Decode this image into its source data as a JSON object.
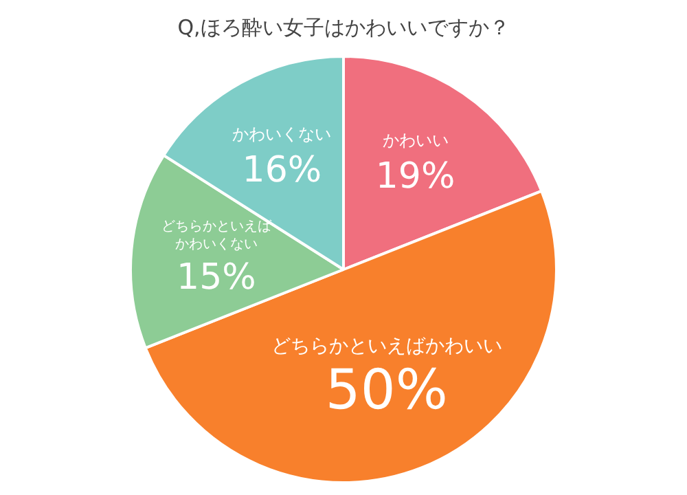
{
  "chart_data": {
    "type": "pie",
    "title": "Q,ほろ酔い女子はかわいいですか？",
    "categories": [
      "かわいい",
      "どちらかといえばかわいい",
      "どちらかといえばかわいくない",
      "かわいくない"
    ],
    "values": [
      19,
      50,
      15,
      16
    ],
    "value_labels": [
      "19%",
      "50%",
      "15%",
      "16%"
    ],
    "colors": [
      "#f06f7e",
      "#f8802c",
      "#8dcc95",
      "#7ecdc7"
    ],
    "legend": false
  }
}
